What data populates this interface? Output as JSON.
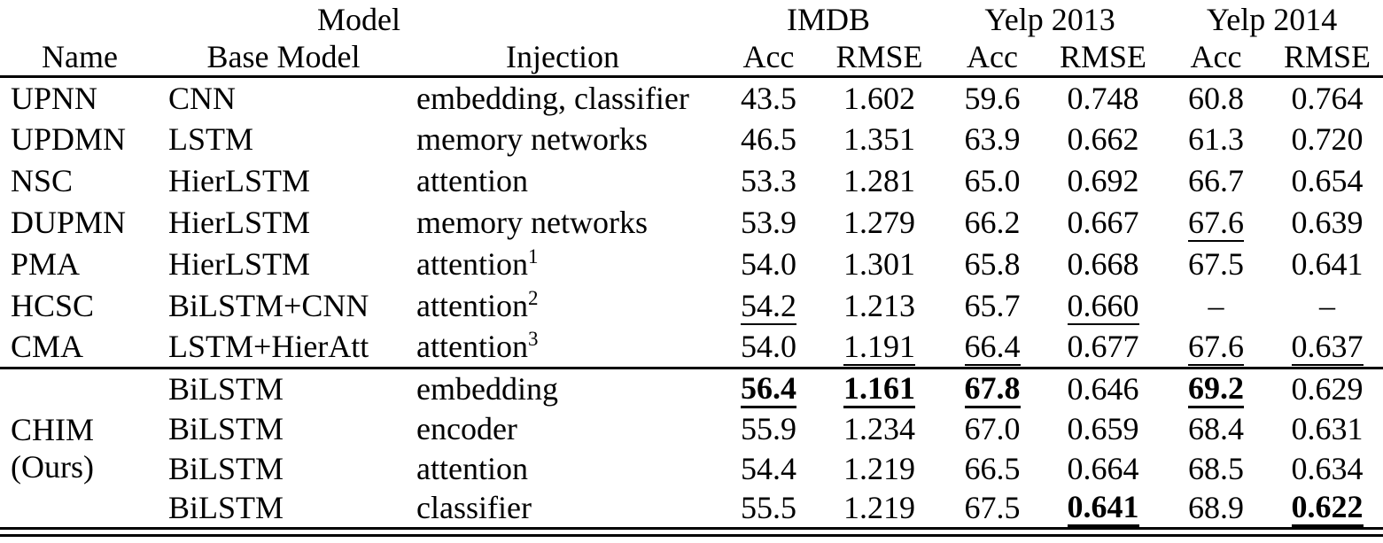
{
  "table": {
    "header": {
      "model_group": "Model",
      "imdb": "IMDB",
      "yelp2013": "Yelp 2013",
      "yelp2014": "Yelp 2014",
      "name": "Name",
      "base_model": "Base Model",
      "injection": "Injection",
      "acc": "Acc",
      "rmse": "RMSE"
    },
    "ours_label": {
      "line1": "CHIM",
      "line2": "(Ours)"
    },
    "rows": [
      {
        "name": "UPNN",
        "base": "CNN",
        "injection": "embedding, classifier",
        "sup": "",
        "imdb_acc": "43.5",
        "imdb_rmse": "1.602",
        "y13_acc": "59.6",
        "y13_rmse": "0.748",
        "y14_acc": "60.8",
        "y14_rmse": "0.764"
      },
      {
        "name": "UPDMN",
        "base": "LSTM",
        "injection": "memory networks",
        "sup": "",
        "imdb_acc": "46.5",
        "imdb_rmse": "1.351",
        "y13_acc": "63.9",
        "y13_rmse": "0.662",
        "y14_acc": "61.3",
        "y14_rmse": "0.720"
      },
      {
        "name": "NSC",
        "base": "HierLSTM",
        "injection": "attention",
        "sup": "",
        "imdb_acc": "53.3",
        "imdb_rmse": "1.281",
        "y13_acc": "65.0",
        "y13_rmse": "0.692",
        "y14_acc": "66.7",
        "y14_rmse": "0.654"
      },
      {
        "name": "DUPMN",
        "base": "HierLSTM",
        "injection": "memory networks",
        "sup": "",
        "imdb_acc": "53.9",
        "imdb_rmse": "1.279",
        "y13_acc": "66.2",
        "y13_rmse": "0.667",
        "y14_acc": "67.6",
        "y14_rmse": "0.639"
      },
      {
        "name": "PMA",
        "base": "HierLSTM",
        "injection": "attention",
        "sup": "1",
        "imdb_acc": "54.0",
        "imdb_rmse": "1.301",
        "y13_acc": "65.8",
        "y13_rmse": "0.668",
        "y14_acc": "67.5",
        "y14_rmse": "0.641"
      },
      {
        "name": "HCSC",
        "base": "BiLSTM+CNN",
        "injection": "attention",
        "sup": "2",
        "imdb_acc": "54.2",
        "imdb_rmse": "1.213",
        "y13_acc": "65.7",
        "y13_rmse": "0.660",
        "y14_acc": "–",
        "y14_rmse": "–"
      },
      {
        "name": "CMA",
        "base": "LSTM+HierAtt",
        "injection": "attention",
        "sup": "3",
        "imdb_acc": "54.0",
        "imdb_rmse": "1.191",
        "y13_acc": "66.4",
        "y13_rmse": "0.677",
        "y14_acc": "67.6",
        "y14_rmse": "0.637"
      },
      {
        "name": "",
        "base": "BiLSTM",
        "injection": "embedding",
        "sup": "",
        "imdb_acc": "56.4",
        "imdb_rmse": "1.161",
        "y13_acc": "67.8",
        "y13_rmse": "0.646",
        "y14_acc": "69.2",
        "y14_rmse": "0.629"
      },
      {
        "name": "CHIM",
        "base": "BiLSTM",
        "injection": "encoder",
        "sup": "",
        "imdb_acc": "55.9",
        "imdb_rmse": "1.234",
        "y13_acc": "67.0",
        "y13_rmse": "0.659",
        "y14_acc": "68.4",
        "y14_rmse": "0.631"
      },
      {
        "name": "(Ours)",
        "base": "BiLSTM",
        "injection": "attention",
        "sup": "",
        "imdb_acc": "54.4",
        "imdb_rmse": "1.219",
        "y13_acc": "66.5",
        "y13_rmse": "0.664",
        "y14_acc": "68.5",
        "y14_rmse": "0.634"
      },
      {
        "name": "",
        "base": "BiLSTM",
        "injection": "classifier",
        "sup": "",
        "imdb_acc": "55.5",
        "imdb_rmse": "1.219",
        "y13_acc": "67.5",
        "y13_rmse": "0.641",
        "y14_acc": "68.9",
        "y14_rmse": "0.622"
      }
    ]
  }
}
